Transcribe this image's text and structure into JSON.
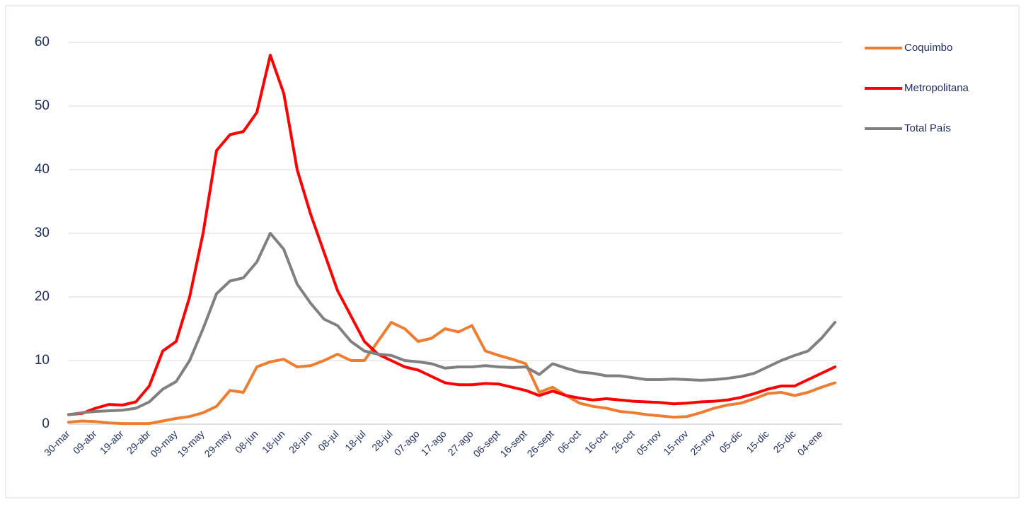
{
  "chart_data": {
    "type": "line",
    "categories": [
      "30-mar",
      null,
      "09-abr",
      null,
      "19-abr",
      null,
      "29-abr",
      null,
      "09-may",
      null,
      "19-may",
      null,
      "29-may",
      null,
      "08-jun",
      null,
      "18-jun",
      null,
      "28-jun",
      null,
      "08-jul",
      null,
      "18-jul",
      null,
      "28-jul",
      null,
      "07-ago",
      null,
      "17-ago",
      null,
      "27-ago",
      null,
      "06-sept",
      null,
      "16-sept",
      null,
      "26-sept",
      null,
      "06-oct",
      null,
      "16-oct",
      null,
      "26-oct",
      null,
      "05-nov",
      null,
      "15-nov",
      null,
      "25-nov",
      null,
      "05-dic",
      null,
      "15-dic",
      null,
      "25-dic",
      null,
      "04-ene",
      null
    ],
    "series": [
      {
        "name": "Coquimbo",
        "color": "#ed7d31",
        "values": [
          0.3,
          0.5,
          0.4,
          0.2,
          0.1,
          0.1,
          0.1,
          0.5,
          0.9,
          1.2,
          1.8,
          2.8,
          5.3,
          5.0,
          9.0,
          9.8,
          10.2,
          9.0,
          9.2,
          10,
          11,
          10,
          10,
          13,
          16,
          15,
          13,
          13.5,
          15,
          14.5,
          15.5,
          11.5,
          10.8,
          10.2,
          9.5,
          5.0,
          5.8,
          4.5,
          3.3,
          2.8,
          2.5,
          2.0,
          1.8,
          1.5,
          1.3,
          1.1,
          1.2,
          1.8,
          2.5,
          3.0,
          3.3,
          4.0,
          4.8,
          5.0,
          4.5,
          5.0,
          5.8,
          6.5
        ]
      },
      {
        "name": "Metropolitana",
        "color": "#ff0000",
        "values": [
          1.5,
          1.7,
          2.5,
          3.1,
          3.0,
          3.5,
          6,
          11.5,
          13,
          20,
          30,
          43,
          45.5,
          46,
          49,
          58,
          52,
          40,
          33,
          27,
          21,
          17,
          13,
          11,
          10,
          9,
          8.5,
          7.5,
          6.5,
          6.2,
          6.2,
          6.4,
          6.3,
          5.8,
          5.3,
          4.5,
          5.2,
          4.5,
          4.1,
          3.8,
          4.0,
          3.8,
          3.6,
          3.5,
          3.4,
          3.2,
          3.3,
          3.5,
          3.6,
          3.8,
          4.2,
          4.8,
          5.5,
          6.0,
          6.0,
          7.0,
          8.0,
          9.0
        ]
      },
      {
        "name": "Total País",
        "color": "#808080",
        "values": [
          1.5,
          1.8,
          2.0,
          2.1,
          2.2,
          2.5,
          3.5,
          5.5,
          6.7,
          10,
          15,
          20.5,
          22.5,
          23,
          25.5,
          30,
          27.5,
          22,
          19,
          16.5,
          15.5,
          13,
          11.5,
          11,
          10.8,
          10,
          9.8,
          9.5,
          8.8,
          9.0,
          9.0,
          9.2,
          9.0,
          8.9,
          9.0,
          7.8,
          9.5,
          8.8,
          8.2,
          8.0,
          7.6,
          7.6,
          7.3,
          7.0,
          7.0,
          7.1,
          7.0,
          6.9,
          7.0,
          7.2,
          7.5,
          8.0,
          9.0,
          10.0,
          10.8,
          11.5,
          13.5,
          16.0
        ]
      }
    ],
    "ylim": [
      0,
      60
    ],
    "yticks": [
      0,
      10,
      20,
      30,
      40,
      50,
      60
    ],
    "grid": true,
    "legend": "right"
  }
}
